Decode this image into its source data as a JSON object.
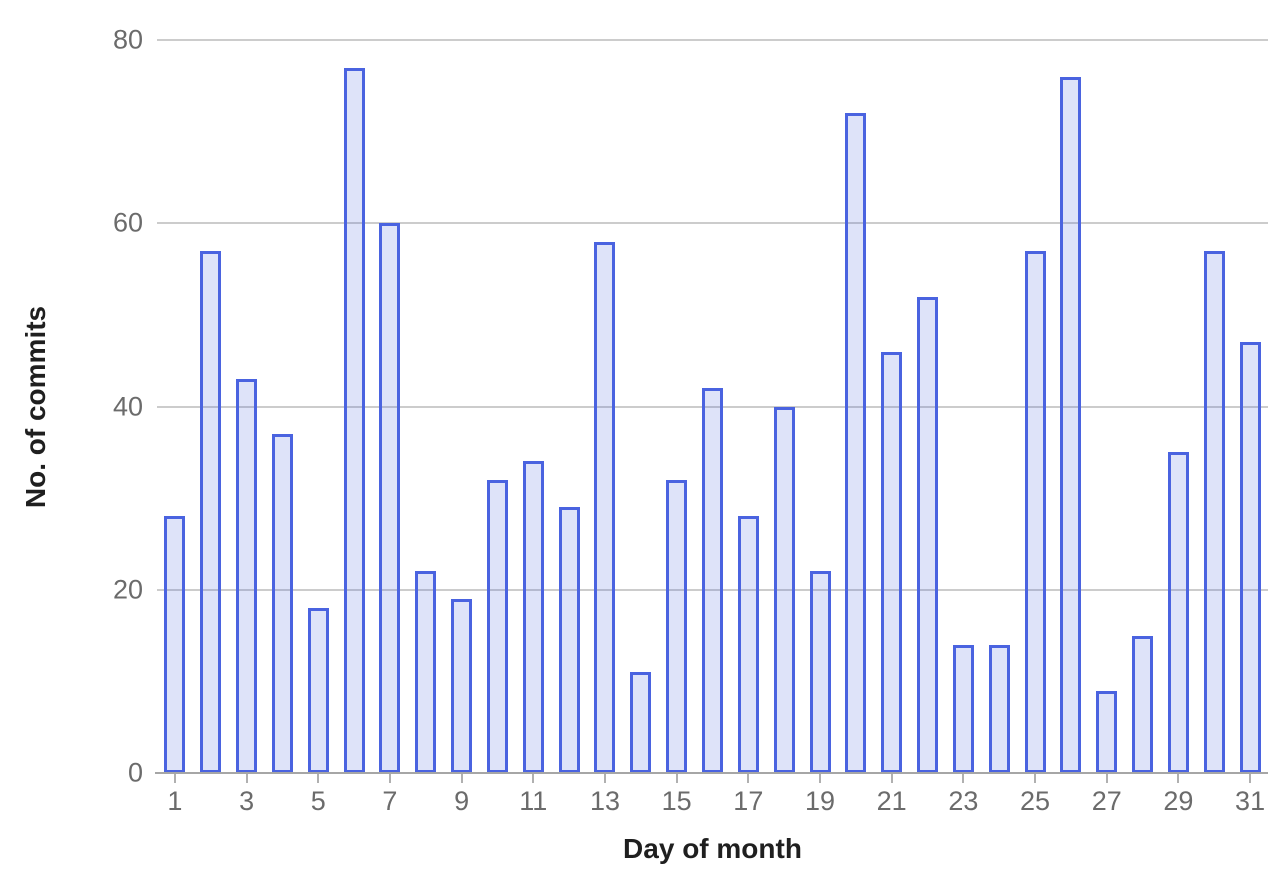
{
  "chart_data": {
    "type": "bar",
    "title": "",
    "xlabel": "Day of month",
    "ylabel": "No. of commits",
    "categories": [
      1,
      2,
      3,
      4,
      5,
      6,
      7,
      8,
      9,
      10,
      11,
      12,
      13,
      14,
      15,
      16,
      17,
      18,
      19,
      20,
      21,
      22,
      23,
      24,
      25,
      26,
      27,
      28,
      29,
      30,
      31
    ],
    "values": [
      28,
      57,
      43,
      37,
      18,
      77,
      60,
      22,
      19,
      32,
      34,
      29,
      58,
      11,
      32,
      42,
      28,
      40,
      22,
      72,
      46,
      52,
      14,
      14,
      57,
      76,
      9,
      15,
      35,
      57,
      47
    ],
    "ylim": [
      0,
      80
    ],
    "y_ticks": [
      0,
      20,
      40,
      60,
      80
    ],
    "x_tick_labels": [
      "1",
      "3",
      "5",
      "7",
      "9",
      "11",
      "13",
      "15",
      "17",
      "19",
      "21",
      "23",
      "25",
      "27",
      "29",
      "31"
    ],
    "grid": "horizontal",
    "legend": "none",
    "colors": {
      "bar_stroke": "#4a63e0",
      "bar_fill_rgba": "rgba(74, 99, 224, 0.18)",
      "gridline": "#cccccc",
      "axis_line": "#a6a6a6",
      "tick_label": "#6b6b6b",
      "axis_title": "#1f1f1f",
      "background": "#ffffff"
    }
  }
}
